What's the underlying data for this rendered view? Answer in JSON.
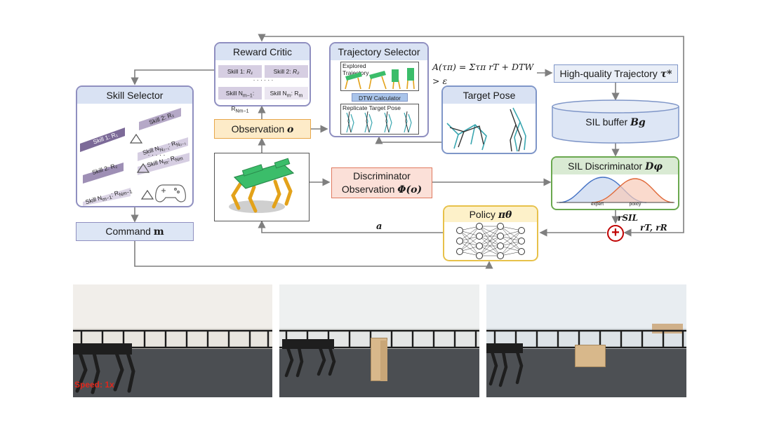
{
  "diagram": {
    "skill_selector": {
      "title": "Skill Selector",
      "skills": [
        {
          "name": "Skill 1: ",
          "reward": "R₁"
        },
        {
          "name": "Skill 2: ",
          "reward": "R₂"
        },
        {
          "name": "Skill N",
          "reward": ": R"
        },
        {
          "name": "Skill 2: ",
          "reward": "R₂"
        },
        {
          "name": "Skill N",
          "reward": ": R"
        },
        {
          "name": "Skill N",
          "reward": ": R"
        }
      ],
      "dots": "· · · · ·"
    },
    "command": {
      "label": "Command ",
      "symbol": "m"
    },
    "reward_critic": {
      "title": "Reward Critic",
      "skills": [
        {
          "name": "Skill 1: ",
          "reward": "R₁"
        },
        {
          "name": "Skill 2: ",
          "reward": "R₂"
        },
        {
          "name": "Skill N",
          "reward": ": R"
        },
        {
          "name": "Skill N",
          "reward": ": R"
        }
      ],
      "dots": "· · · · · ·"
    },
    "observation": {
      "label": "Observation ",
      "symbol": "o"
    },
    "trajectory_selector": {
      "title": "Trajectory Selector",
      "explored": "Explored Trajectory",
      "dtw": "DTW Calculator",
      "replicate": "Replicate Target Pose"
    },
    "target_pose": {
      "title": "Target Pose"
    },
    "advantage_formula": "A(τπ) = Στπ rT + DTW > ε",
    "high_quality": {
      "label": "High-quality Trajectory ",
      "symbol": "τ*"
    },
    "sil_buffer": {
      "label": "SIL buffer ",
      "symbol": "Bg"
    },
    "sil_discriminator": {
      "label": "SIL Discriminator ",
      "symbol": "Dφ",
      "expert": "expert",
      "policy": "policy"
    },
    "disc_observation": {
      "line1": "Discriminator",
      "line2": "Observation ",
      "symbol": "Φ(o)"
    },
    "policy": {
      "label": "Policy ",
      "symbol": "πθ"
    },
    "action": "a",
    "r_sil": "rSIL",
    "r_tr": "rT, rR",
    "plus": "+"
  },
  "photos": [
    {
      "caption": "Speed: 1x"
    },
    {
      "caption": ""
    },
    {
      "caption": ""
    }
  ],
  "colors": {
    "panel_border": "#8f8fc0",
    "title_fill": "#d9e2f3",
    "observation_fill": "#fdebc8",
    "observation_border": "#e7a74a",
    "disc_fill": "#fbe0d8",
    "disc_border": "#e07a5f",
    "sil_border": "#6aa84f",
    "sil_title": "#d9ead3",
    "policy_border": "#e7c14a",
    "plus_red": "#c00000",
    "caption_red": "#e0261b"
  }
}
